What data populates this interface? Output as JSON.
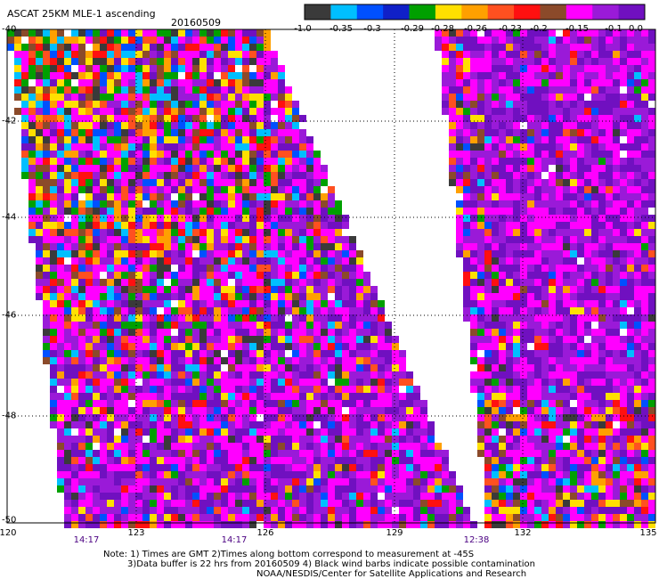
{
  "header": {
    "title": "ASCAT 25KM MLE-1 ascending",
    "date": "20160509"
  },
  "colorbar": {
    "labels": [
      "-1.0",
      "-0.35",
      "-0.3",
      "-0.29",
      "-0.28",
      "-0.26",
      "-0.23",
      "-0.2",
      "-0.15",
      "-0.1",
      "0.0"
    ],
    "colors": [
      "#3a3a3a",
      "#00bfff",
      "#0050ff",
      "#1020c8",
      "#00a000",
      "#ffe000",
      "#ffa000",
      "#ff5020",
      "#ff1010",
      "#8b4a2a",
      "#ff00ff",
      "#9a1ad8",
      "#7010c0"
    ]
  },
  "axes": {
    "lat_labels": [
      "-40",
      "-42",
      "-44",
      "-46",
      "-48",
      "-50"
    ],
    "lon_labels": [
      "120",
      "123",
      "126",
      "129",
      "132",
      "135"
    ],
    "time_labels": [
      "14:17",
      "14:17",
      "12:38"
    ]
  },
  "notes": {
    "line1": "Note: 1) Times are GMT 2)Times along bottom correspond to measurement at -45S",
    "line2": "3)Data buffer is 22 hrs from 20160509 4) Black wind barbs indicate possible contamination",
    "line3": "NOAA/NESDIS/Center for Satellite Applications and Research"
  },
  "icons": {
    "map": "scatterometer-swath-map"
  }
}
